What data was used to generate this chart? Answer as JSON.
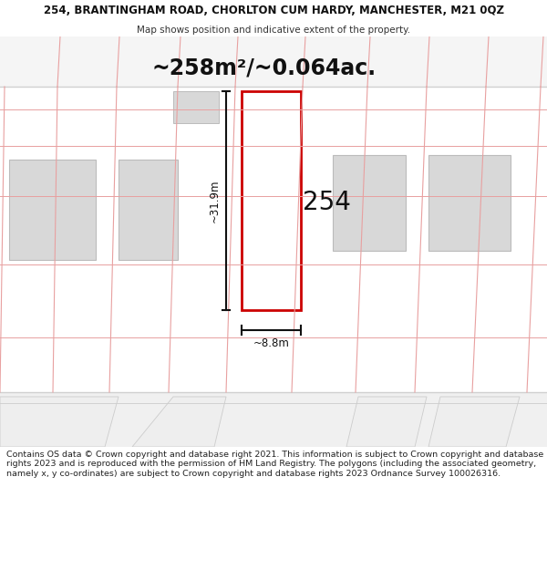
{
  "title_line1": "254, BRANTINGHAM ROAD, CHORLTON CUM HARDY, MANCHESTER, M21 0QZ",
  "title_line2": "Map shows position and indicative extent of the property.",
  "area_text": "~258m²/~0.064ac.",
  "plot_number": "254",
  "dim_height": "~31.9m",
  "dim_width": "~8.8m",
  "footer_text": "Contains OS data © Crown copyright and database right 2021. This information is subject to Crown copyright and database rights 2023 and is reproduced with the permission of HM Land Registry. The polygons (including the associated geometry, namely x, y co-ordinates) are subject to Crown copyright and database rights 2023 Ordnance Survey 100026316.",
  "bg_color": "#ffffff",
  "map_bg": "#ffffff",
  "plot_fill": "#ffffff",
  "plot_edge": "#cc0000",
  "neighbor_fill": "#d8d8d8",
  "neighbor_edge": "#bbbbbb",
  "pink": "#e8a0a0",
  "dim_line_color": "#111111",
  "title_fontsize": 8.5,
  "subtitle_fontsize": 7.5,
  "area_fontsize": 17,
  "plot_num_fontsize": 20,
  "dim_fontsize": 8.5,
  "footer_fontsize": 6.8
}
